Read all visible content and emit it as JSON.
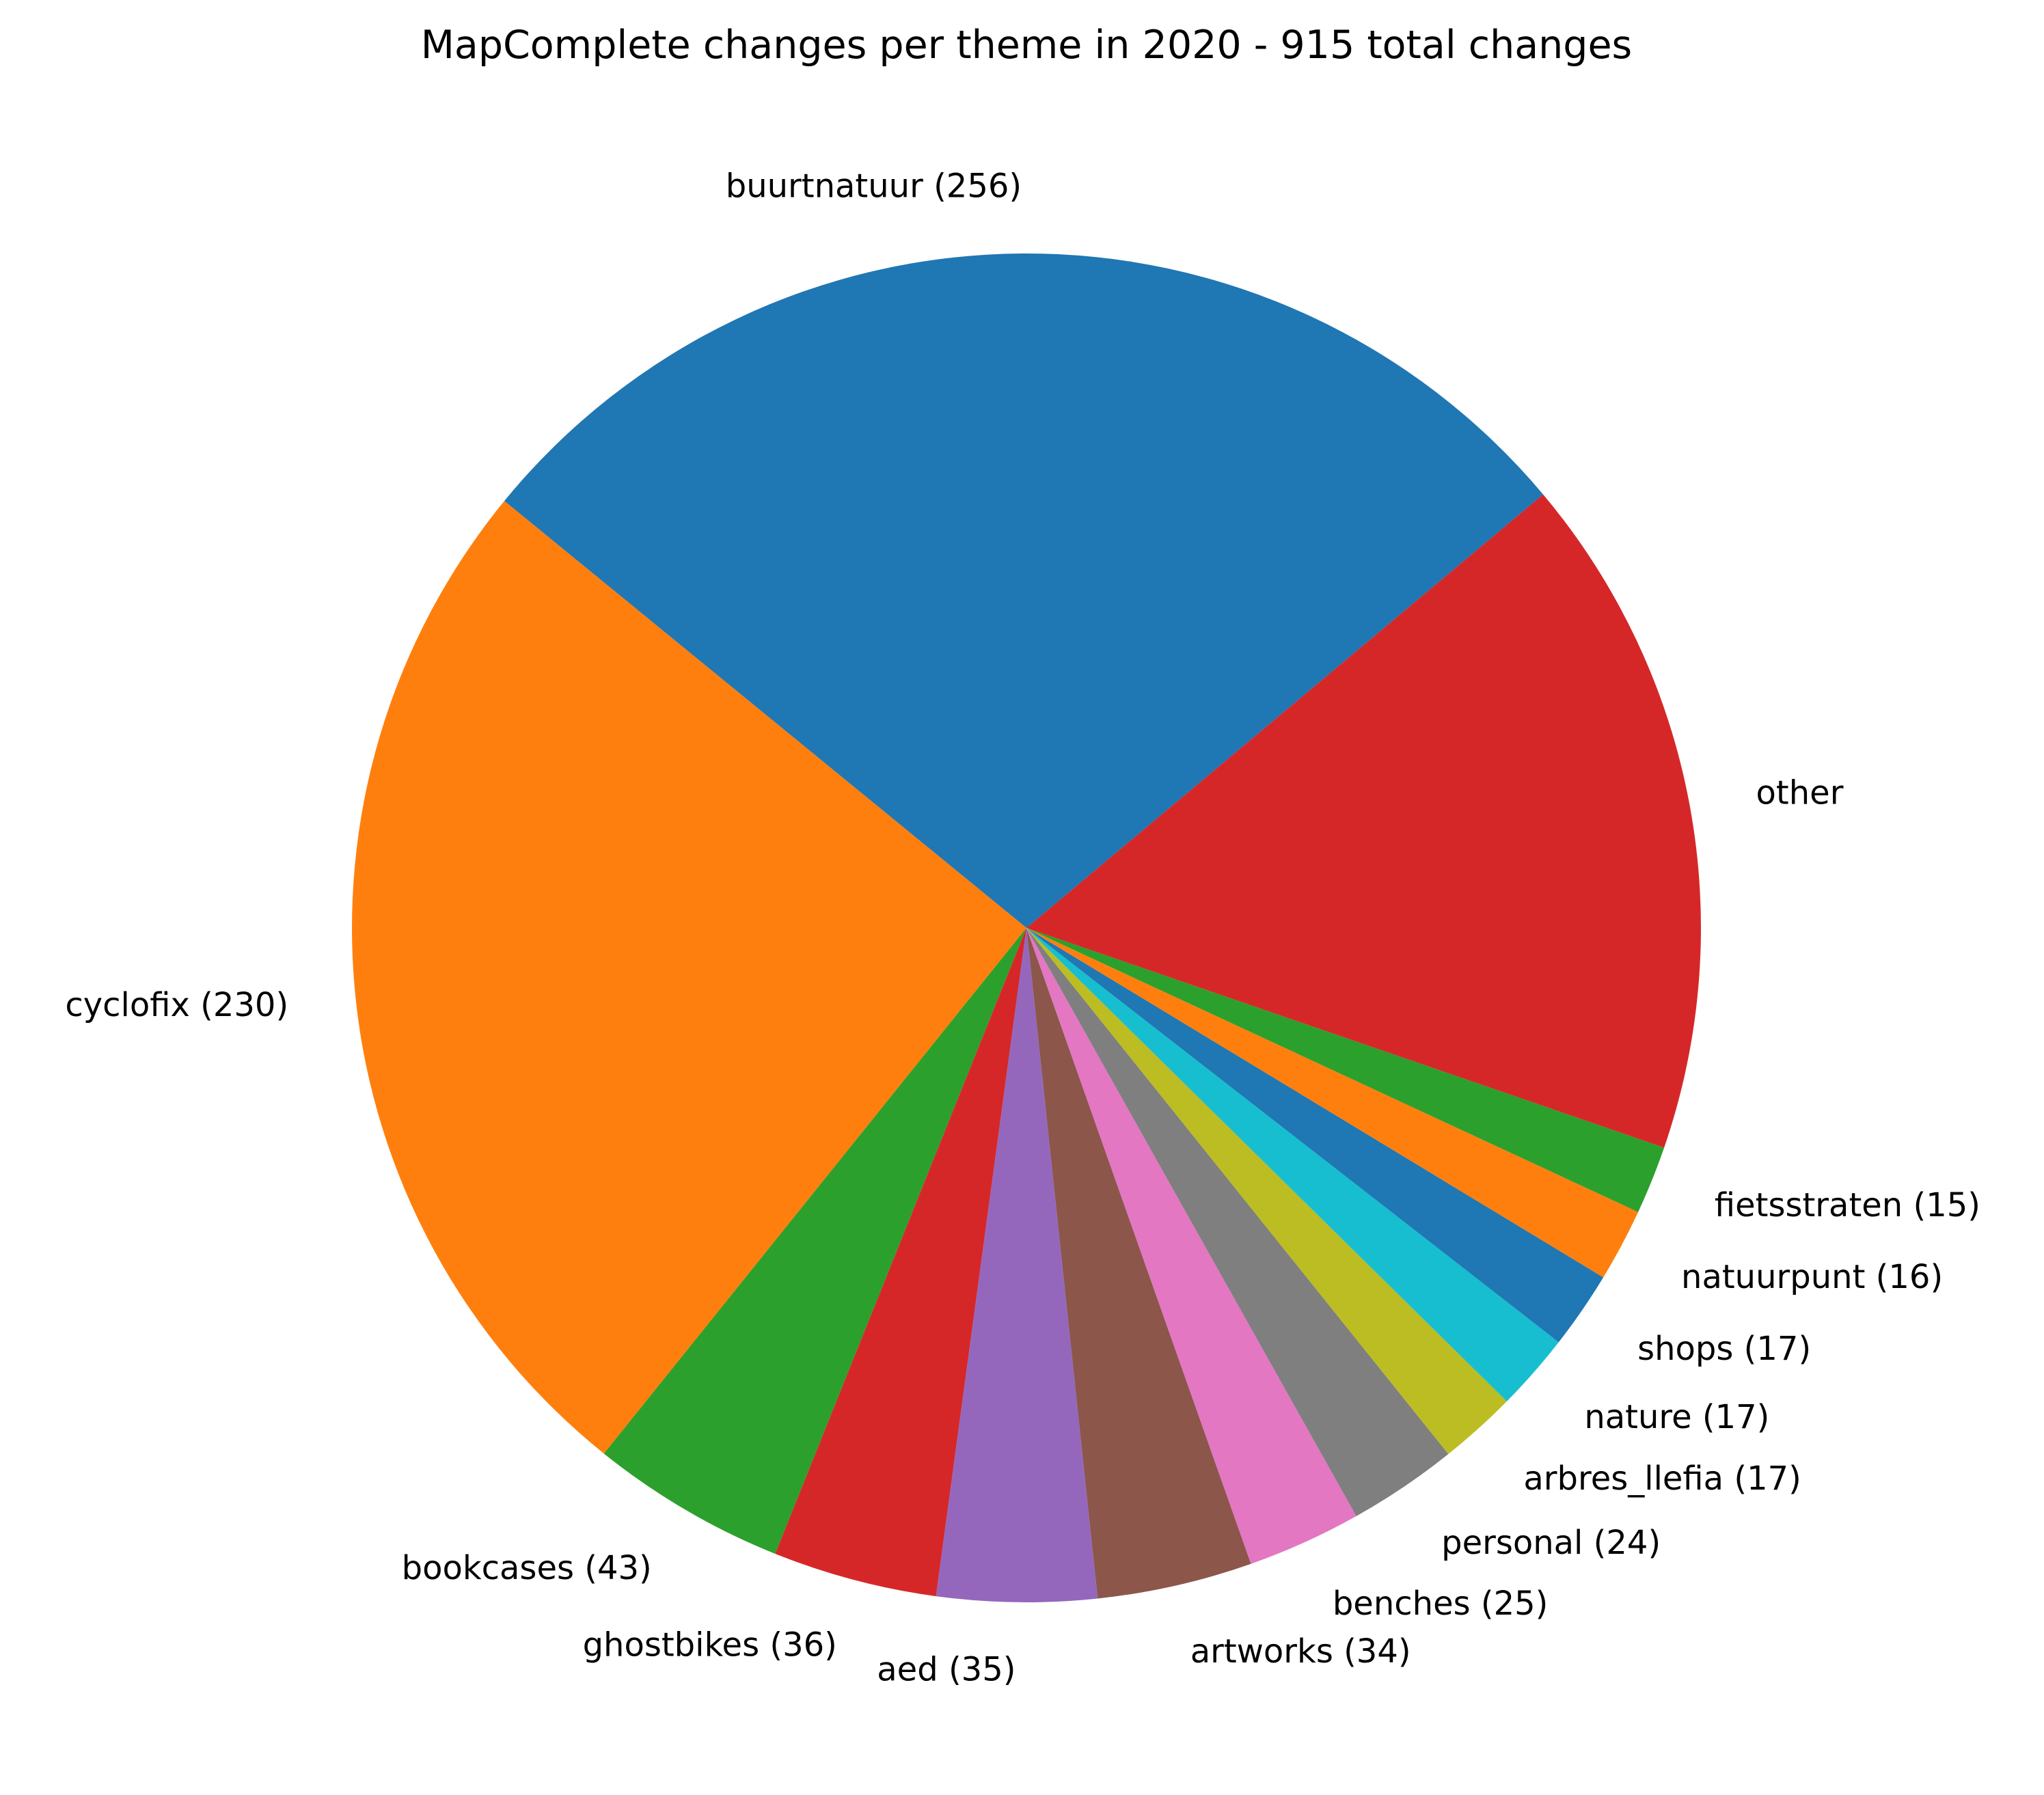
{
  "chart_data": {
    "type": "pie",
    "title": "MapComplete changes per theme in 2020 - 915 total changes",
    "slices": [
      {
        "name": "buurtnatuur",
        "value": 256,
        "label": "buurtnatuur (256)",
        "color": "#1f77b4"
      },
      {
        "name": "cyclofix",
        "value": 230,
        "label": "cyclofix (230)",
        "color": "#ff7f0e"
      },
      {
        "name": "bookcases",
        "value": 43,
        "label": "bookcases (43)",
        "color": "#2ca02c"
      },
      {
        "name": "ghostbikes",
        "value": 36,
        "label": "ghostbikes (36)",
        "color": "#d62728"
      },
      {
        "name": "aed",
        "value": 35,
        "label": "aed (35)",
        "color": "#9467bd"
      },
      {
        "name": "artworks",
        "value": 34,
        "label": "artworks (34)",
        "color": "#8c564b"
      },
      {
        "name": "benches",
        "value": 25,
        "label": "benches (25)",
        "color": "#e377c2"
      },
      {
        "name": "personal",
        "value": 24,
        "label": "personal (24)",
        "color": "#7f7f7f"
      },
      {
        "name": "arbres_llefia",
        "value": 17,
        "label": "arbres_llefia (17)",
        "color": "#bcbd22"
      },
      {
        "name": "nature",
        "value": 17,
        "label": "nature (17)",
        "color": "#17becf"
      },
      {
        "name": "shops",
        "value": 17,
        "label": "shops (17)",
        "color": "#1f77b4"
      },
      {
        "name": "natuurpunt",
        "value": 16,
        "label": "natuurpunt (16)",
        "color": "#ff7f0e"
      },
      {
        "name": "fietsstraten",
        "value": 15,
        "label": "fietsstraten (15)",
        "color": "#2ca02c"
      },
      {
        "name": "other",
        "value": 150,
        "label": "other",
        "color": "#d62728"
      }
    ],
    "start_angle_deg": 40,
    "direction": "counterclockwise"
  }
}
